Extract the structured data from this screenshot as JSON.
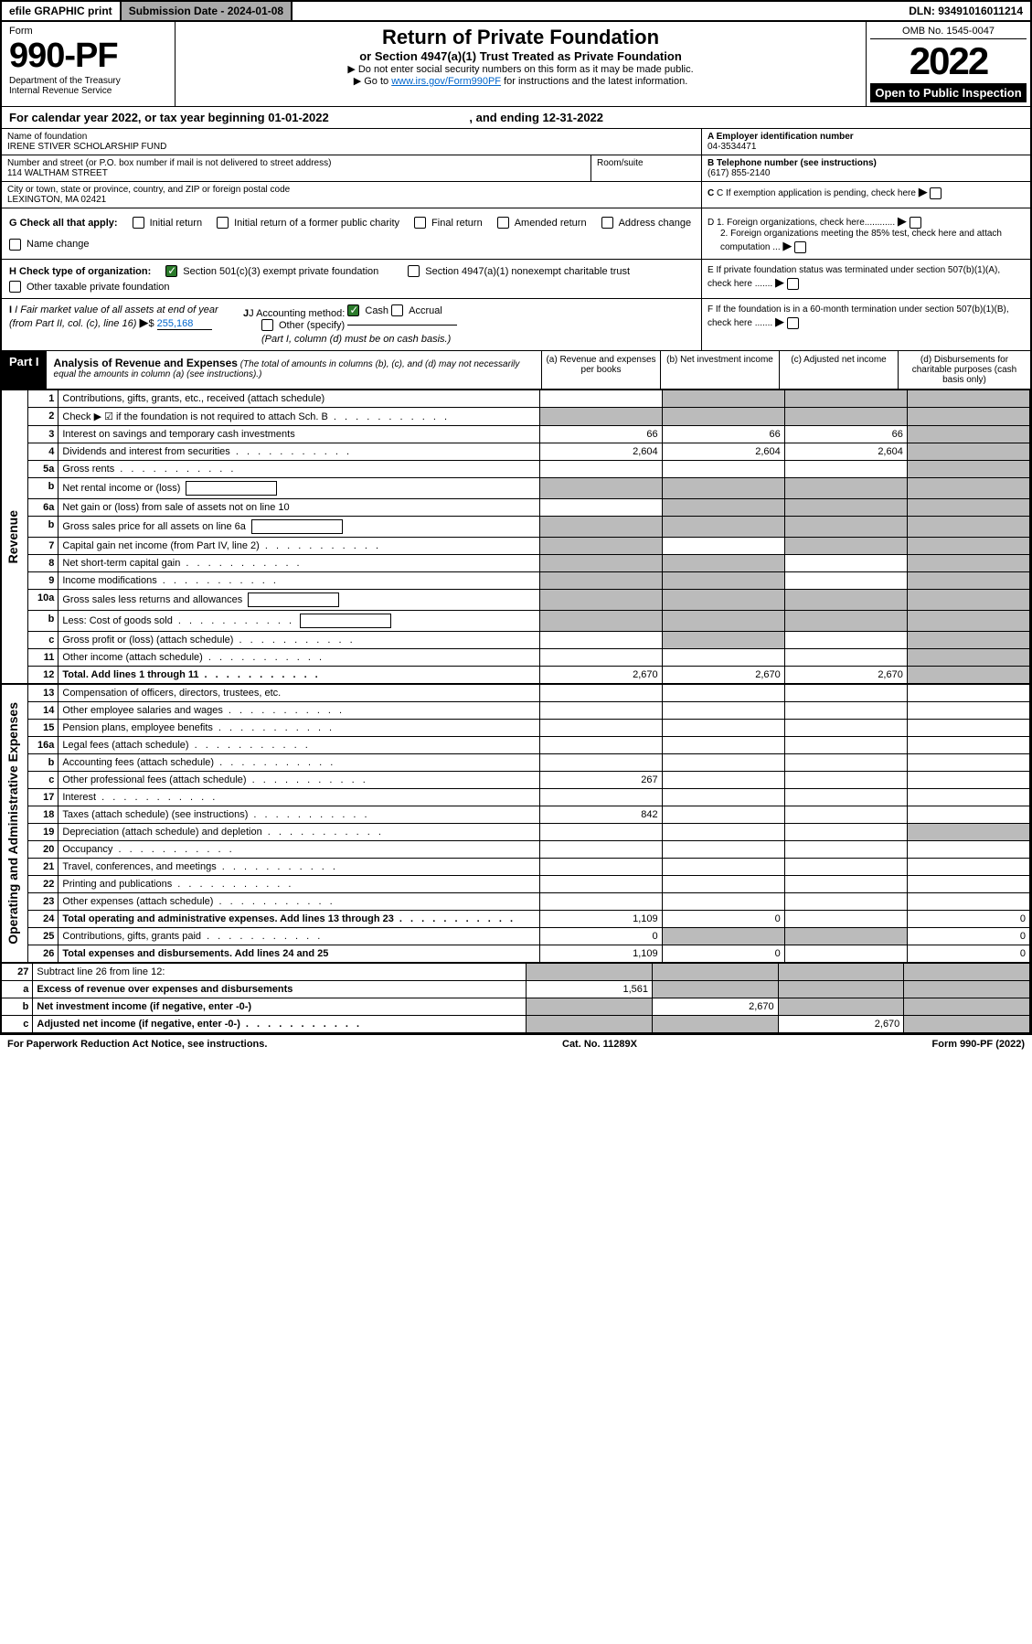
{
  "topbar": {
    "efile": "efile GRAPHIC print",
    "submission": "Submission Date - 2024-01-08",
    "dln": "DLN: 93491016011214"
  },
  "header": {
    "form_label": "Form",
    "form_number": "990-PF",
    "dept1": "Department of the Treasury",
    "dept2": "Internal Revenue Service",
    "title": "Return of Private Foundation",
    "subtitle": "or Section 4947(a)(1) Trust Treated as Private Foundation",
    "note1": "▶ Do not enter social security numbers on this form as it may be made public.",
    "note2_pre": "▶ Go to ",
    "note2_link": "www.irs.gov/Form990PF",
    "note2_post": " for instructions and the latest information.",
    "omb": "OMB No. 1545-0047",
    "year": "2022",
    "open": "Open to Public Inspection"
  },
  "calyear": "For calendar year 2022, or tax year beginning 01-01-2022",
  "calyear_end": ", and ending 12-31-2022",
  "foundation": {
    "name_label": "Name of foundation",
    "name": "IRENE STIVER SCHOLARSHIP FUND",
    "addr_label": "Number and street (or P.O. box number if mail is not delivered to street address)",
    "addr": "114 WALTHAM STREET",
    "room_label": "Room/suite",
    "city_label": "City or town, state or province, country, and ZIP or foreign postal code",
    "city": "LEXINGTON, MA  02421",
    "ein_label": "A Employer identification number",
    "ein": "04-3534471",
    "tel_label": "B Telephone number (see instructions)",
    "tel": "(617) 855-2140",
    "c_label": "C If exemption application is pending, check here",
    "d1": "D 1. Foreign organizations, check here............",
    "d2": "2. Foreign organizations meeting the 85% test, check here and attach computation ...",
    "e_label": "E  If private foundation status was terminated under section 507(b)(1)(A), check here .......",
    "f_label": "F  If the foundation is in a 60-month termination under section 507(b)(1)(B), check here .......",
    "g_label": "G Check all that apply:",
    "g_opts": [
      "Initial return",
      "Initial return of a former public charity",
      "Final return",
      "Amended return",
      "Address change",
      "Name change"
    ],
    "h_label": "H Check type of organization:",
    "h_501c3": "Section 501(c)(3) exempt private foundation",
    "h_4947": "Section 4947(a)(1) nonexempt charitable trust",
    "h_other": "Other taxable private foundation",
    "i_label": "I Fair market value of all assets at end of year (from Part II, col. (c), line 16)",
    "i_val": "255,168",
    "j_label": "J Accounting method:",
    "j_cash": "Cash",
    "j_accrual": "Accrual",
    "j_other": "Other (specify)",
    "j_note": "(Part I, column (d) must be on cash basis.)"
  },
  "part1": {
    "label": "Part I",
    "title": "Analysis of Revenue and Expenses",
    "note": "(The total of amounts in columns (b), (c), and (d) may not necessarily equal the amounts in column (a) (see instructions).)",
    "col_a": "(a)  Revenue and expenses per books",
    "col_b": "(b)  Net investment income",
    "col_c": "(c)  Adjusted net income",
    "col_d": "(d)  Disbursements for charitable purposes (cash basis only)"
  },
  "sections": {
    "revenue": "Revenue",
    "opex": "Operating and Administrative Expenses"
  },
  "lines": [
    {
      "n": "1",
      "d": "Contributions, gifts, grants, etc., received (attach schedule)",
      "a": "",
      "b": "grey",
      "c": "grey",
      "dcol": "grey"
    },
    {
      "n": "2",
      "d": "Check ▶ ☑ if the foundation is not required to attach Sch. B",
      "a": "grey",
      "b": "grey",
      "c": "grey",
      "dcol": "grey",
      "dots": true
    },
    {
      "n": "3",
      "d": "Interest on savings and temporary cash investments",
      "a": "66",
      "b": "66",
      "c": "66",
      "dcol": "grey"
    },
    {
      "n": "4",
      "d": "Dividends and interest from securities",
      "a": "2,604",
      "b": "2,604",
      "c": "2,604",
      "dcol": "grey",
      "dots": true
    },
    {
      "n": "5a",
      "d": "Gross rents",
      "a": "",
      "b": "",
      "c": "",
      "dcol": "grey",
      "dots": true
    },
    {
      "n": "b",
      "d": "Net rental income or (loss)",
      "a": "grey",
      "b": "grey",
      "c": "grey",
      "dcol": "grey",
      "box": true
    },
    {
      "n": "6a",
      "d": "Net gain or (loss) from sale of assets not on line 10",
      "a": "",
      "b": "grey",
      "c": "grey",
      "dcol": "grey"
    },
    {
      "n": "b",
      "d": "Gross sales price for all assets on line 6a",
      "a": "grey",
      "b": "grey",
      "c": "grey",
      "dcol": "grey",
      "box": true
    },
    {
      "n": "7",
      "d": "Capital gain net income (from Part IV, line 2)",
      "a": "grey",
      "b": "",
      "c": "grey",
      "dcol": "grey",
      "dots": true
    },
    {
      "n": "8",
      "d": "Net short-term capital gain",
      "a": "grey",
      "b": "grey",
      "c": "",
      "dcol": "grey",
      "dots": true
    },
    {
      "n": "9",
      "d": "Income modifications",
      "a": "grey",
      "b": "grey",
      "c": "",
      "dcol": "grey",
      "dots": true
    },
    {
      "n": "10a",
      "d": "Gross sales less returns and allowances",
      "a": "grey",
      "b": "grey",
      "c": "grey",
      "dcol": "grey",
      "box": true
    },
    {
      "n": "b",
      "d": "Less: Cost of goods sold",
      "a": "grey",
      "b": "grey",
      "c": "grey",
      "dcol": "grey",
      "box": true,
      "dots": true
    },
    {
      "n": "c",
      "d": "Gross profit or (loss) (attach schedule)",
      "a": "",
      "b": "grey",
      "c": "",
      "dcol": "grey",
      "dots": true
    },
    {
      "n": "11",
      "d": "Other income (attach schedule)",
      "a": "",
      "b": "",
      "c": "",
      "dcol": "grey",
      "dots": true
    },
    {
      "n": "12",
      "d": "Total. Add lines 1 through 11",
      "a": "2,670",
      "b": "2,670",
      "c": "2,670",
      "dcol": "grey",
      "bold": true,
      "dots": true
    }
  ],
  "lines2": [
    {
      "n": "13",
      "d": "Compensation of officers, directors, trustees, etc.",
      "a": "",
      "b": "",
      "c": "",
      "dcol": ""
    },
    {
      "n": "14",
      "d": "Other employee salaries and wages",
      "a": "",
      "b": "",
      "c": "",
      "dcol": "",
      "dots": true
    },
    {
      "n": "15",
      "d": "Pension plans, employee benefits",
      "a": "",
      "b": "",
      "c": "",
      "dcol": "",
      "dots": true
    },
    {
      "n": "16a",
      "d": "Legal fees (attach schedule)",
      "a": "",
      "b": "",
      "c": "",
      "dcol": "",
      "dots": true
    },
    {
      "n": "b",
      "d": "Accounting fees (attach schedule)",
      "a": "",
      "b": "",
      "c": "",
      "dcol": "",
      "dots": true
    },
    {
      "n": "c",
      "d": "Other professional fees (attach schedule)",
      "a": "267",
      "b": "",
      "c": "",
      "dcol": "",
      "dots": true
    },
    {
      "n": "17",
      "d": "Interest",
      "a": "",
      "b": "",
      "c": "",
      "dcol": "",
      "dots": true
    },
    {
      "n": "18",
      "d": "Taxes (attach schedule) (see instructions)",
      "a": "842",
      "b": "",
      "c": "",
      "dcol": "",
      "dots": true
    },
    {
      "n": "19",
      "d": "Depreciation (attach schedule) and depletion",
      "a": "",
      "b": "",
      "c": "",
      "dcol": "grey",
      "dots": true
    },
    {
      "n": "20",
      "d": "Occupancy",
      "a": "",
      "b": "",
      "c": "",
      "dcol": "",
      "dots": true
    },
    {
      "n": "21",
      "d": "Travel, conferences, and meetings",
      "a": "",
      "b": "",
      "c": "",
      "dcol": "",
      "dots": true
    },
    {
      "n": "22",
      "d": "Printing and publications",
      "a": "",
      "b": "",
      "c": "",
      "dcol": "",
      "dots": true
    },
    {
      "n": "23",
      "d": "Other expenses (attach schedule)",
      "a": "",
      "b": "",
      "c": "",
      "dcol": "",
      "dots": true
    },
    {
      "n": "24",
      "d": "Total operating and administrative expenses. Add lines 13 through 23",
      "a": "1,109",
      "b": "0",
      "c": "",
      "dcol": "0",
      "bold": true,
      "dots": true
    },
    {
      "n": "25",
      "d": "Contributions, gifts, grants paid",
      "a": "0",
      "b": "grey",
      "c": "grey",
      "dcol": "0",
      "dots": true
    },
    {
      "n": "26",
      "d": "Total expenses and disbursements. Add lines 24 and 25",
      "a": "1,109",
      "b": "0",
      "c": "",
      "dcol": "0",
      "bold": true
    }
  ],
  "lines3": [
    {
      "n": "27",
      "d": "Subtract line 26 from line 12:",
      "a": "grey",
      "b": "grey",
      "c": "grey",
      "dcol": "grey"
    },
    {
      "n": "a",
      "d": "Excess of revenue over expenses and disbursements",
      "a": "1,561",
      "b": "grey",
      "c": "grey",
      "dcol": "grey",
      "bold": true
    },
    {
      "n": "b",
      "d": "Net investment income (if negative, enter -0-)",
      "a": "grey",
      "b": "2,670",
      "c": "grey",
      "dcol": "grey",
      "bold": true
    },
    {
      "n": "c",
      "d": "Adjusted net income (if negative, enter -0-)",
      "a": "grey",
      "b": "grey",
      "c": "2,670",
      "dcol": "grey",
      "bold": true,
      "dots": true
    }
  ],
  "footer": {
    "left": "For Paperwork Reduction Act Notice, see instructions.",
    "mid": "Cat. No. 11289X",
    "right": "Form 990-PF (2022)"
  },
  "colors": {
    "grey": "#bbbbbb",
    "link": "#0066cc",
    "check": "#2b7a2b"
  }
}
